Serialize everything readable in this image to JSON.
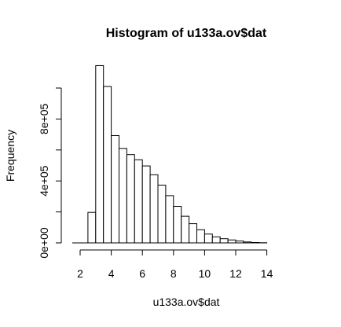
{
  "chart_data": {
    "type": "bar",
    "title": "Histogram of u133a.ov$dat",
    "xlabel": "u133a.ov$dat",
    "ylabel": "Frequency",
    "xlim": [
      1.5,
      14
    ],
    "ylim": [
      0,
      1000000
    ],
    "x_ticks": [
      {
        "value": 2,
        "label": "2"
      },
      {
        "value": 4,
        "label": "4"
      },
      {
        "value": 6,
        "label": "6"
      },
      {
        "value": 8,
        "label": "8"
      },
      {
        "value": 10,
        "label": "10"
      },
      {
        "value": 12,
        "label": "12"
      },
      {
        "value": 14,
        "label": "14"
      }
    ],
    "y_ticks": [
      {
        "value": 0,
        "label": "0e+00"
      },
      {
        "value": 400000,
        "label": "4e+05"
      },
      {
        "value": 800000,
        "label": "8e+05"
      }
    ],
    "bins": [
      {
        "from": 2.5,
        "to": 3.0,
        "count": 197000
      },
      {
        "from": 3.0,
        "to": 3.5,
        "count": 1145000
      },
      {
        "from": 3.5,
        "to": 4.0,
        "count": 1010000
      },
      {
        "from": 4.0,
        "to": 4.5,
        "count": 693000
      },
      {
        "from": 4.5,
        "to": 5.0,
        "count": 610000
      },
      {
        "from": 5.0,
        "to": 5.5,
        "count": 570000
      },
      {
        "from": 5.5,
        "to": 6.0,
        "count": 537000
      },
      {
        "from": 6.0,
        "to": 6.5,
        "count": 497000
      },
      {
        "from": 6.5,
        "to": 7.0,
        "count": 440000
      },
      {
        "from": 7.0,
        "to": 7.5,
        "count": 373000
      },
      {
        "from": 7.5,
        "to": 8.0,
        "count": 305000
      },
      {
        "from": 8.0,
        "to": 8.5,
        "count": 236000
      },
      {
        "from": 8.5,
        "to": 9.0,
        "count": 172000
      },
      {
        "from": 9.0,
        "to": 9.5,
        "count": 124000
      },
      {
        "from": 9.5,
        "to": 10.0,
        "count": 85000
      },
      {
        "from": 10.0,
        "to": 10.5,
        "count": 57000
      },
      {
        "from": 10.5,
        "to": 11.0,
        "count": 39000
      },
      {
        "from": 11.0,
        "to": 11.5,
        "count": 27000
      },
      {
        "from": 11.5,
        "to": 12.0,
        "count": 19000
      },
      {
        "from": 12.0,
        "to": 12.5,
        "count": 12000
      },
      {
        "from": 12.5,
        "to": 13.0,
        "count": 6000
      },
      {
        "from": 13.0,
        "to": 13.5,
        "count": 2500
      },
      {
        "from": 13.5,
        "to": 14.0,
        "count": 1000
      }
    ],
    "grid": false,
    "legend": "none",
    "colors": {
      "bar_fill": "#ffffff",
      "bar_stroke": "#000000"
    }
  }
}
